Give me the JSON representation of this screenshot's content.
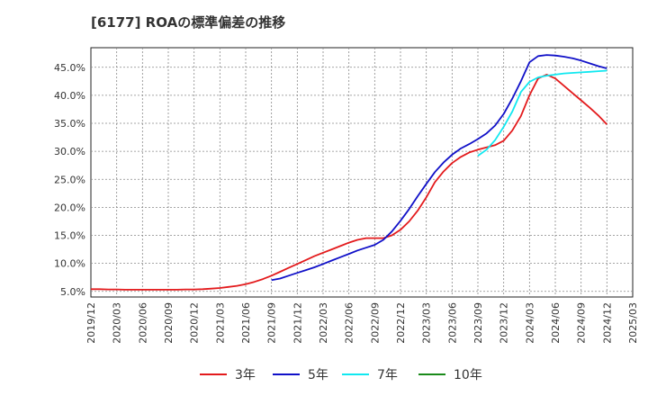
{
  "title": "[6177]  ROAの標準偏差の推移",
  "chart_data": {
    "type": "line",
    "title": "[6177]  ROAの標準偏差の推移",
    "xlabel": "",
    "ylabel": "",
    "x_ticks": [
      "2019/12",
      "2020/03",
      "2020/06",
      "2020/09",
      "2020/12",
      "2021/03",
      "2021/06",
      "2021/09",
      "2021/12",
      "2022/03",
      "2022/06",
      "2022/09",
      "2022/12",
      "2023/03",
      "2023/06",
      "2023/09",
      "2023/12",
      "2024/03",
      "2024/06",
      "2024/09",
      "2024/12",
      "2025/03"
    ],
    "y_ticks": [
      "5.0%",
      "10.0%",
      "15.0%",
      "20.0%",
      "25.0%",
      "30.0%",
      "35.0%",
      "40.0%",
      "45.0%"
    ],
    "ylim": [
      4.0,
      48.5
    ],
    "grid": true,
    "legend_position": "bottom",
    "series": [
      {
        "name": "3年",
        "color": "#e31a1c",
        "x": [
          "2019/12",
          "2020/01",
          "2020/02",
          "2020/03",
          "2020/04",
          "2020/05",
          "2020/06",
          "2020/07",
          "2020/08",
          "2020/09",
          "2020/10",
          "2020/11",
          "2020/12",
          "2021/01",
          "2021/02",
          "2021/03",
          "2021/04",
          "2021/05",
          "2021/06",
          "2021/07",
          "2021/08",
          "2021/09",
          "2021/10",
          "2021/11",
          "2021/12",
          "2022/01",
          "2022/02",
          "2022/03",
          "2022/04",
          "2022/05",
          "2022/06",
          "2022/07",
          "2022/08",
          "2022/09",
          "2022/10",
          "2022/11",
          "2022/12",
          "2023/01",
          "2023/02",
          "2023/03",
          "2023/04",
          "2023/05",
          "2023/06",
          "2023/07",
          "2023/08",
          "2023/09",
          "2023/10",
          "2023/11",
          "2023/12",
          "2024/01",
          "2024/02",
          "2024/03",
          "2024/04",
          "2024/05",
          "2024/06",
          "2024/07",
          "2024/08",
          "2024/09",
          "2024/10",
          "2024/11",
          "2024/12"
        ],
        "values": [
          5.4,
          5.4,
          5.35,
          5.35,
          5.3,
          5.3,
          5.3,
          5.3,
          5.3,
          5.3,
          5.3,
          5.35,
          5.35,
          5.4,
          5.5,
          5.6,
          5.8,
          6.0,
          6.3,
          6.7,
          7.2,
          7.8,
          8.5,
          9.2,
          9.9,
          10.6,
          11.3,
          11.9,
          12.5,
          13.1,
          13.7,
          14.2,
          14.5,
          14.5,
          14.5,
          15.0,
          16.0,
          17.5,
          19.4,
          21.8,
          24.5,
          26.4,
          27.9,
          29.0,
          29.8,
          30.3,
          30.7,
          31.1,
          31.9,
          33.7,
          36.3,
          40.0,
          43.0,
          43.7,
          43.0,
          41.7,
          40.4,
          39.1,
          37.8,
          36.4,
          34.8
        ]
      },
      {
        "name": "5年",
        "color": "#1010c8",
        "x": [
          "2021/09",
          "2021/10",
          "2021/11",
          "2021/12",
          "2022/01",
          "2022/02",
          "2022/03",
          "2022/04",
          "2022/05",
          "2022/06",
          "2022/07",
          "2022/08",
          "2022/09",
          "2022/10",
          "2022/11",
          "2022/12",
          "2023/01",
          "2023/02",
          "2023/03",
          "2023/04",
          "2023/05",
          "2023/06",
          "2023/07",
          "2023/08",
          "2023/09",
          "2023/10",
          "2023/11",
          "2023/12",
          "2024/01",
          "2024/02",
          "2024/03",
          "2024/04",
          "2024/05",
          "2024/06",
          "2024/07",
          "2024/08",
          "2024/09",
          "2024/10",
          "2024/11",
          "2024/12"
        ],
        "values": [
          7.0,
          7.3,
          7.8,
          8.3,
          8.8,
          9.3,
          9.9,
          10.5,
          11.1,
          11.7,
          12.3,
          12.8,
          13.3,
          14.2,
          15.7,
          17.6,
          19.7,
          22.0,
          24.2,
          26.3,
          28.0,
          29.4,
          30.5,
          31.3,
          32.2,
          33.2,
          34.6,
          36.7,
          39.4,
          42.5,
          45.9,
          47.0,
          47.2,
          47.1,
          46.9,
          46.6,
          46.2,
          45.7,
          45.2,
          44.8
        ]
      },
      {
        "name": "7年",
        "color": "#10e8f0",
        "x": [
          "2023/09",
          "2023/10",
          "2023/11",
          "2023/12",
          "2024/01",
          "2024/02",
          "2024/03",
          "2024/04",
          "2024/05",
          "2024/06",
          "2024/07",
          "2024/08",
          "2024/09",
          "2024/10",
          "2024/11",
          "2024/12"
        ],
        "values": [
          29.2,
          30.3,
          32.0,
          34.4,
          37.1,
          40.6,
          42.4,
          43.2,
          43.5,
          43.7,
          43.9,
          44.0,
          44.1,
          44.2,
          44.3,
          44.4
        ]
      },
      {
        "name": "10年",
        "color": "#1a8a1a",
        "x": [],
        "values": []
      }
    ]
  }
}
